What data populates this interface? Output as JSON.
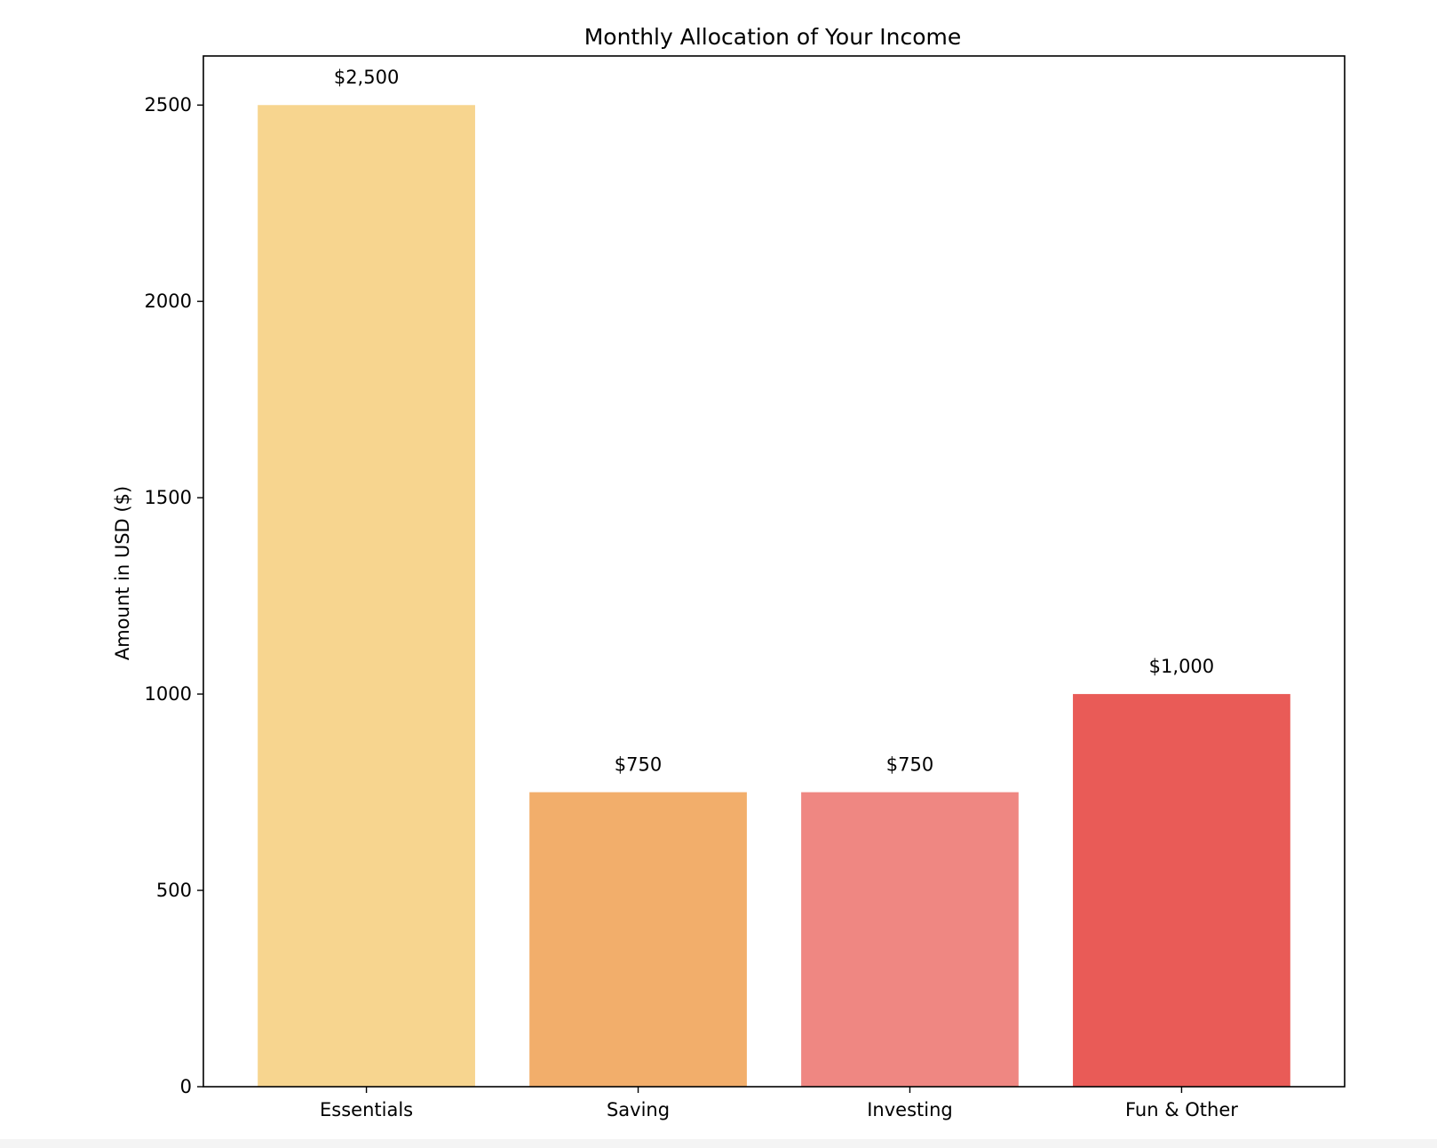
{
  "chart_data": {
    "type": "bar",
    "title": "Monthly Allocation of Your Income",
    "xlabel": "",
    "ylabel": "Amount in USD ($)",
    "categories": [
      "Essentials",
      "Saving",
      "Investing",
      "Fun & Other"
    ],
    "values": [
      2500,
      750,
      750,
      1000
    ],
    "data_labels": [
      "$2,500",
      "$750",
      "$750",
      "$1,000"
    ],
    "colors": [
      "#f7d58f",
      "#f2ae6b",
      "#ef8782",
      "#e95b57"
    ],
    "ylim": [
      0,
      2625
    ],
    "yticks": [
      0,
      500,
      1000,
      1500,
      2000,
      2500
    ],
    "grid": false,
    "legend": "none"
  }
}
